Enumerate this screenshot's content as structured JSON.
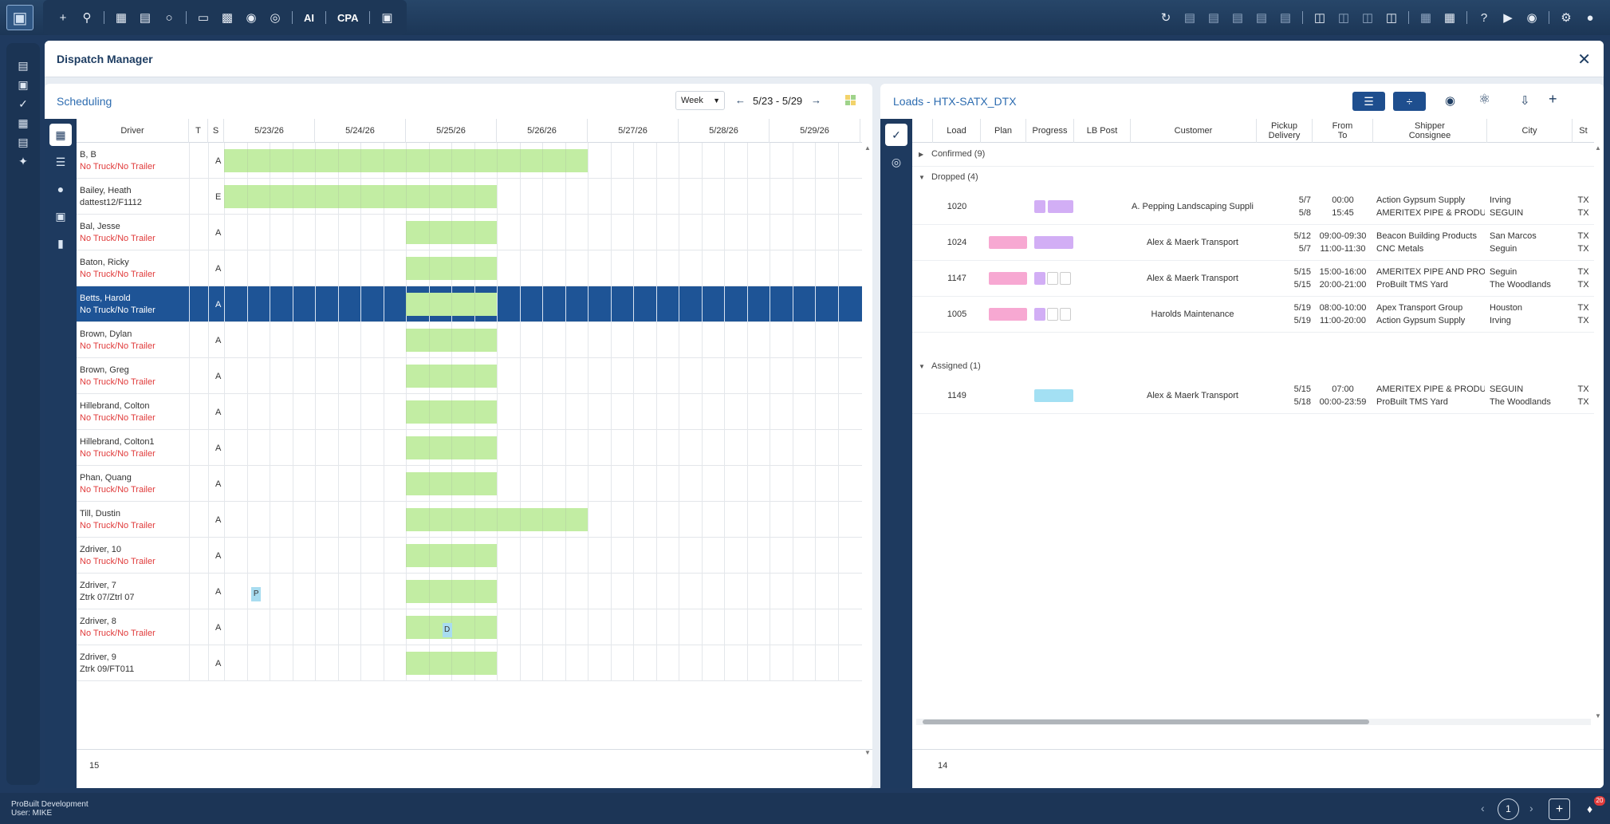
{
  "toolbar": {
    "ai_label": "AI",
    "cpa_label": "CPA"
  },
  "window": {
    "title": "Dispatch Manager"
  },
  "scheduling": {
    "title": "Scheduling",
    "view_select": "Week",
    "date_range": "5/23 - 5/29",
    "columns": {
      "driver": "Driver",
      "t": "T",
      "s": "S"
    },
    "dates": [
      "5/23/26",
      "5/24/26",
      "5/25/26",
      "5/26/26",
      "5/27/26",
      "5/28/26",
      "5/29/26"
    ],
    "drivers": [
      {
        "name": "B, B",
        "sub": "No Truck/No Trailer",
        "s": "A",
        "warn": true,
        "bar_start": 0,
        "bar_days": 4
      },
      {
        "name": "Bailey, Heath",
        "sub": "dattest12/F1112",
        "s": "E",
        "warn": false,
        "bar_start": 0,
        "bar_days": 3
      },
      {
        "name": "Bal, Jesse",
        "sub": "No Truck/No Trailer",
        "s": "A",
        "warn": true,
        "bar_start": 2,
        "bar_days": 1
      },
      {
        "name": "Baton, Ricky",
        "sub": "No Truck/No Trailer",
        "s": "A",
        "warn": true,
        "bar_start": 2,
        "bar_days": 1
      },
      {
        "name": "Betts, Harold",
        "sub": "No Truck/No Trailer",
        "s": "A",
        "warn": true,
        "bar_start": 2,
        "bar_days": 1,
        "selected": true
      },
      {
        "name": "Brown, Dylan",
        "sub": "No Truck/No Trailer",
        "s": "A",
        "warn": true,
        "bar_start": 2,
        "bar_days": 1
      },
      {
        "name": "Brown, Greg",
        "sub": "No Truck/No Trailer",
        "s": "A",
        "warn": true,
        "bar_start": 2,
        "bar_days": 1
      },
      {
        "name": "Hillebrand, Colton",
        "sub": "No Truck/No Trailer",
        "s": "A",
        "warn": true,
        "bar_start": 2,
        "bar_days": 1
      },
      {
        "name": "Hillebrand, Colton1",
        "sub": "No Truck/No Trailer",
        "s": "A",
        "warn": true,
        "bar_start": 2,
        "bar_days": 1
      },
      {
        "name": "Phan, Quang",
        "sub": "No Truck/No Trailer",
        "s": "A",
        "warn": true,
        "bar_start": 2,
        "bar_days": 1
      },
      {
        "name": "Till, Dustin",
        "sub": "No Truck/No Trailer",
        "s": "A",
        "warn": true,
        "bar_start": 2,
        "bar_days": 2
      },
      {
        "name": "Zdriver, 10",
        "sub": "No Truck/No Trailer",
        "s": "A",
        "warn": true,
        "bar_start": 2,
        "bar_days": 1
      },
      {
        "name": "Zdriver, 7",
        "sub": "Ztrk 07/Ztrl 07",
        "s": "A",
        "warn": false,
        "bar_start": 2,
        "bar_days": 1,
        "marker": "P",
        "marker_day": 0.3
      },
      {
        "name": "Zdriver, 8",
        "sub": "No Truck/No Trailer",
        "s": "A",
        "warn": true,
        "bar_start": 2,
        "bar_days": 1,
        "marker": "D",
        "marker_day": 2.4
      },
      {
        "name": "Zdriver, 9",
        "sub": "Ztrk 09/FT011",
        "s": "A",
        "warn": false,
        "bar_start": 2,
        "bar_days": 1
      }
    ],
    "count": "15"
  },
  "loads": {
    "title": "Loads - HTX-SATX_DTX",
    "columns": {
      "load": "Load",
      "plan": "Plan",
      "progress": "Progress",
      "lb_post": "LB Post",
      "customer": "Customer",
      "pickup": "Pickup",
      "delivery": "Delivery",
      "from": "From",
      "to": "To",
      "shipper": "Shipper",
      "consignee": "Consignee",
      "city": "City",
      "st": "St"
    },
    "groups": {
      "confirmed": "Confirmed (9)",
      "dropped": "Dropped (4)",
      "assigned": "Assigned (1)"
    },
    "dropped_rows": [
      {
        "load": "1020",
        "plan": false,
        "progress": "purple2",
        "customer": "A. Pepping Landscaping Suppli",
        "d1": "5/7",
        "d2": "5/8",
        "t1": "00:00",
        "t2": "15:45",
        "s1": "Action Gypsum Supply",
        "s2": "AMERITEX PIPE & PRODUCTS I",
        "c1": "Irving",
        "c2": "SEGUIN",
        "st1": "TX",
        "st2": "TX"
      },
      {
        "load": "1024",
        "plan": true,
        "progress": "purple-wide",
        "customer": "Alex & Maerk Transport",
        "d1": "5/12",
        "d2": "5/7",
        "t1": "09:00-09:30",
        "t2": "11:00-11:30",
        "s1": "Beacon Building Products",
        "s2": "CNC Metals",
        "c1": "San Marcos",
        "c2": "Seguin",
        "st1": "TX",
        "st2": "TX"
      },
      {
        "load": "1147",
        "plan": true,
        "progress": "partial",
        "customer": "Alex & Maerk Transport",
        "d1": "5/15",
        "d2": "5/15",
        "t1": "15:00-16:00",
        "t2": "20:00-21:00",
        "s1": "AMERITEX PIPE AND PRODUC'",
        "s2": "ProBuilt TMS Yard",
        "c1": "Seguin",
        "c2": "The Woodlands",
        "st1": "TX",
        "st2": "TX"
      },
      {
        "load": "1005",
        "plan": true,
        "progress": "partial",
        "customer": "Harolds Maintenance",
        "d1": "5/19",
        "d2": "5/19",
        "t1": "08:00-10:00",
        "t2": "11:00-20:00",
        "s1": "Apex Transport Group",
        "s2": "Action Gypsum Supply",
        "c1": "Houston",
        "c2": "Irving",
        "st1": "TX",
        "st2": "TX"
      }
    ],
    "assigned_rows": [
      {
        "load": "1149",
        "plan": false,
        "progress": "cyan",
        "customer": "Alex & Maerk Transport",
        "d1": "5/15",
        "d2": "5/18",
        "t1": "07:00",
        "t2": "00:00-23:59",
        "s1": "AMERITEX PIPE & PRODUCTS I",
        "s2": "ProBuilt TMS Yard",
        "c1": "SEGUIN",
        "c2": "The Woodlands",
        "st1": "TX",
        "st2": "TX"
      }
    ],
    "count": "14"
  },
  "footer": {
    "org": "ProBuilt Development",
    "user": "User: MIKE",
    "page": "1",
    "notif_count": "20"
  },
  "colors": {
    "bar_green": "#c2eda3",
    "selected_row": "#1e5496",
    "warn_red": "#e03b3b",
    "chip_pink": "#f7a8d2",
    "chip_purple": "#d2aef5",
    "chip_cyan": "#a3e0f3"
  }
}
